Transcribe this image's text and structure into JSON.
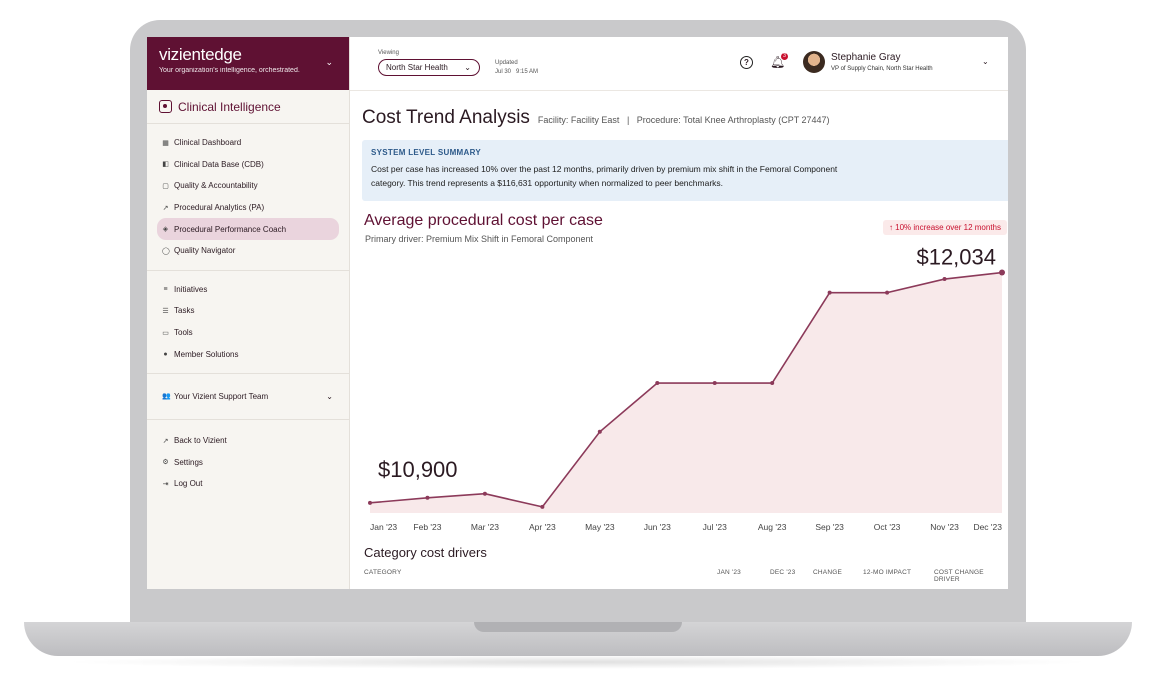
{
  "brand": {
    "name": "vizientedge",
    "tagline": "Your organization's intelligence, orchestrated."
  },
  "module": {
    "title": "Clinical Intelligence"
  },
  "sidebar": {
    "primary": [
      {
        "icon": "grid-icon",
        "glyph": "▦",
        "label": "Clinical Dashboard",
        "active": false
      },
      {
        "icon": "database-icon",
        "glyph": "◧",
        "label": "Clinical Data Base (CDB)",
        "active": false
      },
      {
        "icon": "clipboard-icon",
        "glyph": "▢",
        "label": "Quality & Accountability",
        "active": false
      },
      {
        "icon": "trend-icon",
        "glyph": "↗",
        "label": "Procedural Analytics (PA)",
        "active": false
      },
      {
        "icon": "coach-icon",
        "glyph": "◈",
        "label": "Procedural Performance Coach",
        "active": true
      },
      {
        "icon": "shield-icon",
        "glyph": "◯",
        "label": "Quality Navigator",
        "active": false
      }
    ],
    "secondary": [
      {
        "icon": "list-icon",
        "glyph": "≡",
        "label": "Initiatives"
      },
      {
        "icon": "tasks-icon",
        "glyph": "☰",
        "label": "Tasks"
      },
      {
        "icon": "tools-icon",
        "glyph": "▭",
        "label": "Tools"
      },
      {
        "icon": "location-icon",
        "glyph": "●",
        "label": "Member Solutions"
      }
    ],
    "support": {
      "label": "Your Vizient Support Team"
    },
    "tertiary": [
      {
        "icon": "external-arrow-icon",
        "glyph": "↗",
        "label": "Back to Vizient"
      },
      {
        "icon": "gear-icon",
        "glyph": "⚙",
        "label": "Settings"
      },
      {
        "icon": "logout-icon",
        "glyph": "⇥",
        "label": "Log Out"
      }
    ]
  },
  "topbar": {
    "viewing_label": "Viewing",
    "facility": "North Star Health",
    "updated_label": "Updated",
    "updated_value": "Jul 30   9:15 AM",
    "help": "?",
    "notification_count": "3",
    "user_name": "Stephanie Gray",
    "user_role": "VP of Supply Chain, North Star Health"
  },
  "page": {
    "title": "Cost Trend Analysis",
    "subtitle": "Facility: Facility East   |   Procedure: Total Knee Arthroplasty (CPT 27447)"
  },
  "summary": {
    "heading": "SYSTEM LEVEL SUMMARY",
    "text": "Cost per case has increased 10% over the past 12 months, primarily driven by premium mix shift in the Femoral Component category. This trend represents a $116,631 opportunity when normalized to peer benchmarks."
  },
  "chart_card": {
    "title": "Average procedural cost per case",
    "subtitle": "Primary driver: Premium Mix Shift in Femoral Component",
    "badge": "↑ 10% increase over 12 months",
    "start_label": "$10,900",
    "end_label": "$12,034"
  },
  "chart_data": {
    "type": "area",
    "categories": [
      "Jan '23",
      "Feb '23",
      "Mar '23",
      "Apr '23",
      "May '23",
      "Jun '23",
      "Jul '23",
      "Aug '23",
      "Sep '23",
      "Oct '23",
      "Nov '23",
      "Dec '23"
    ],
    "values": [
      10900,
      10925,
      10945,
      10880,
      11250,
      11490,
      11490,
      11490,
      11935,
      11935,
      12002,
      12034
    ],
    "ylim": [
      10850,
      12150
    ],
    "colors": {
      "line": "#8c3a5a",
      "fill": "#f8e9ea"
    }
  },
  "category_table": {
    "title": "Category cost drivers",
    "columns": [
      "CATEGORY",
      "JAN '23",
      "DEC '23",
      "CHANGE",
      "12-MO IMPACT",
      "COST CHANGE DRIVER"
    ]
  }
}
